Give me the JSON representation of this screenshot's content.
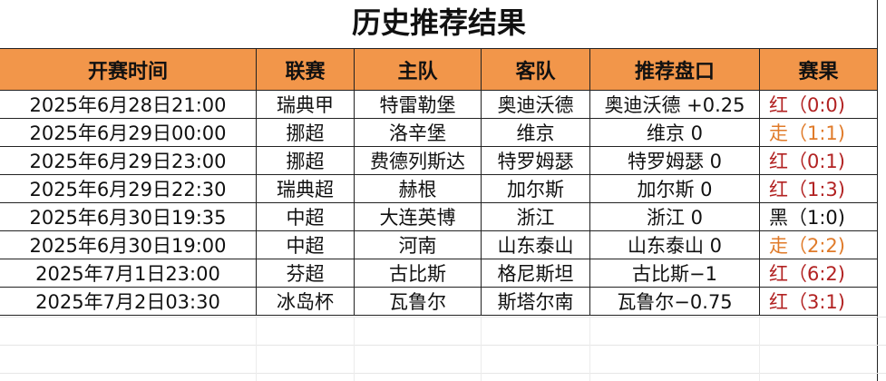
{
  "title": "历史推荐结果",
  "headers": [
    "开赛时间",
    "联赛",
    "主队",
    "客队",
    "推荐盘口",
    "赛果"
  ],
  "colors": {
    "header_bg": "#F2964A",
    "red": "#B22222",
    "push": "#E07B2A",
    "black": "#111111"
  },
  "rows": [
    {
      "time": "2025年6月28日21:00",
      "league": "瑞典甲",
      "home": "特雷勒堡",
      "away": "奥迪沃德",
      "pick": "奥迪沃德 +0.25",
      "result": "红（0:0)",
      "status": "red"
    },
    {
      "time": "2025年6月29日00:00",
      "league": "挪超",
      "home": "洛辛堡",
      "away": "维京",
      "pick": "维京 0",
      "result": "走（1:1)",
      "status": "push"
    },
    {
      "time": "2025年6月29日23:00",
      "league": "挪超",
      "home": "费德列斯达",
      "away": "特罗姆瑟",
      "pick": "特罗姆瑟 0",
      "result": "红（0:1)",
      "status": "red"
    },
    {
      "time": "2025年6月29日22:30",
      "league": "瑞典超",
      "home": "赫根",
      "away": "加尔斯",
      "pick": "加尔斯 0",
      "result": "红（1:3)",
      "status": "red"
    },
    {
      "time": "2025年6月30日19:35",
      "league": "中超",
      "home": "大连英博",
      "away": "浙江",
      "pick": "浙江 0",
      "result": "黑（1:0)",
      "status": "black"
    },
    {
      "time": "2025年6月30日19:00",
      "league": "中超",
      "home": "河南",
      "away": "山东泰山",
      "pick": "山东泰山 0",
      "result": "走（2:2)",
      "status": "push"
    },
    {
      "time": "2025年7月1日23:00",
      "league": "芬超",
      "home": "古比斯",
      "away": "格尼斯坦",
      "pick": "古比斯−1",
      "result": "红（6:2)",
      "status": "red"
    },
    {
      "time": "2025年7月2日03:30",
      "league": "冰岛杯",
      "home": "瓦鲁尔",
      "away": "斯塔尔南",
      "pick": "瓦鲁尔−0.75",
      "result": "红（3:1)",
      "status": "red"
    }
  ]
}
